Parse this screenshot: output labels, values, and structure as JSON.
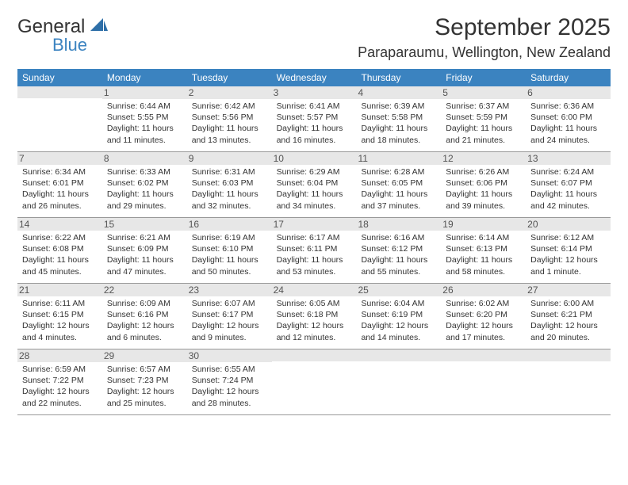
{
  "brand": {
    "word1": "General",
    "word2": "Blue",
    "text_color": "#333333",
    "accent_color": "#3b83c0"
  },
  "title": {
    "month": "September 2025",
    "location": "Paraparaumu, Wellington, New Zealand"
  },
  "calendar": {
    "header_bg": "#3b83c0",
    "header_fg": "#ffffff",
    "daynum_bg": "#e7e7e7",
    "border_color": "#999999",
    "weekdays": [
      "Sunday",
      "Monday",
      "Tuesday",
      "Wednesday",
      "Thursday",
      "Friday",
      "Saturday"
    ],
    "weeks": [
      [
        {
          "n": "",
          "sunrise": "",
          "sunset": "",
          "daylight": ""
        },
        {
          "n": "1",
          "sunrise": "Sunrise: 6:44 AM",
          "sunset": "Sunset: 5:55 PM",
          "daylight": "Daylight: 11 hours and 11 minutes."
        },
        {
          "n": "2",
          "sunrise": "Sunrise: 6:42 AM",
          "sunset": "Sunset: 5:56 PM",
          "daylight": "Daylight: 11 hours and 13 minutes."
        },
        {
          "n": "3",
          "sunrise": "Sunrise: 6:41 AM",
          "sunset": "Sunset: 5:57 PM",
          "daylight": "Daylight: 11 hours and 16 minutes."
        },
        {
          "n": "4",
          "sunrise": "Sunrise: 6:39 AM",
          "sunset": "Sunset: 5:58 PM",
          "daylight": "Daylight: 11 hours and 18 minutes."
        },
        {
          "n": "5",
          "sunrise": "Sunrise: 6:37 AM",
          "sunset": "Sunset: 5:59 PM",
          "daylight": "Daylight: 11 hours and 21 minutes."
        },
        {
          "n": "6",
          "sunrise": "Sunrise: 6:36 AM",
          "sunset": "Sunset: 6:00 PM",
          "daylight": "Daylight: 11 hours and 24 minutes."
        }
      ],
      [
        {
          "n": "7",
          "sunrise": "Sunrise: 6:34 AM",
          "sunset": "Sunset: 6:01 PM",
          "daylight": "Daylight: 11 hours and 26 minutes."
        },
        {
          "n": "8",
          "sunrise": "Sunrise: 6:33 AM",
          "sunset": "Sunset: 6:02 PM",
          "daylight": "Daylight: 11 hours and 29 minutes."
        },
        {
          "n": "9",
          "sunrise": "Sunrise: 6:31 AM",
          "sunset": "Sunset: 6:03 PM",
          "daylight": "Daylight: 11 hours and 32 minutes."
        },
        {
          "n": "10",
          "sunrise": "Sunrise: 6:29 AM",
          "sunset": "Sunset: 6:04 PM",
          "daylight": "Daylight: 11 hours and 34 minutes."
        },
        {
          "n": "11",
          "sunrise": "Sunrise: 6:28 AM",
          "sunset": "Sunset: 6:05 PM",
          "daylight": "Daylight: 11 hours and 37 minutes."
        },
        {
          "n": "12",
          "sunrise": "Sunrise: 6:26 AM",
          "sunset": "Sunset: 6:06 PM",
          "daylight": "Daylight: 11 hours and 39 minutes."
        },
        {
          "n": "13",
          "sunrise": "Sunrise: 6:24 AM",
          "sunset": "Sunset: 6:07 PM",
          "daylight": "Daylight: 11 hours and 42 minutes."
        }
      ],
      [
        {
          "n": "14",
          "sunrise": "Sunrise: 6:22 AM",
          "sunset": "Sunset: 6:08 PM",
          "daylight": "Daylight: 11 hours and 45 minutes."
        },
        {
          "n": "15",
          "sunrise": "Sunrise: 6:21 AM",
          "sunset": "Sunset: 6:09 PM",
          "daylight": "Daylight: 11 hours and 47 minutes."
        },
        {
          "n": "16",
          "sunrise": "Sunrise: 6:19 AM",
          "sunset": "Sunset: 6:10 PM",
          "daylight": "Daylight: 11 hours and 50 minutes."
        },
        {
          "n": "17",
          "sunrise": "Sunrise: 6:17 AM",
          "sunset": "Sunset: 6:11 PM",
          "daylight": "Daylight: 11 hours and 53 minutes."
        },
        {
          "n": "18",
          "sunrise": "Sunrise: 6:16 AM",
          "sunset": "Sunset: 6:12 PM",
          "daylight": "Daylight: 11 hours and 55 minutes."
        },
        {
          "n": "19",
          "sunrise": "Sunrise: 6:14 AM",
          "sunset": "Sunset: 6:13 PM",
          "daylight": "Daylight: 11 hours and 58 minutes."
        },
        {
          "n": "20",
          "sunrise": "Sunrise: 6:12 AM",
          "sunset": "Sunset: 6:14 PM",
          "daylight": "Daylight: 12 hours and 1 minute."
        }
      ],
      [
        {
          "n": "21",
          "sunrise": "Sunrise: 6:11 AM",
          "sunset": "Sunset: 6:15 PM",
          "daylight": "Daylight: 12 hours and 4 minutes."
        },
        {
          "n": "22",
          "sunrise": "Sunrise: 6:09 AM",
          "sunset": "Sunset: 6:16 PM",
          "daylight": "Daylight: 12 hours and 6 minutes."
        },
        {
          "n": "23",
          "sunrise": "Sunrise: 6:07 AM",
          "sunset": "Sunset: 6:17 PM",
          "daylight": "Daylight: 12 hours and 9 minutes."
        },
        {
          "n": "24",
          "sunrise": "Sunrise: 6:05 AM",
          "sunset": "Sunset: 6:18 PM",
          "daylight": "Daylight: 12 hours and 12 minutes."
        },
        {
          "n": "25",
          "sunrise": "Sunrise: 6:04 AM",
          "sunset": "Sunset: 6:19 PM",
          "daylight": "Daylight: 12 hours and 14 minutes."
        },
        {
          "n": "26",
          "sunrise": "Sunrise: 6:02 AM",
          "sunset": "Sunset: 6:20 PM",
          "daylight": "Daylight: 12 hours and 17 minutes."
        },
        {
          "n": "27",
          "sunrise": "Sunrise: 6:00 AM",
          "sunset": "Sunset: 6:21 PM",
          "daylight": "Daylight: 12 hours and 20 minutes."
        }
      ],
      [
        {
          "n": "28",
          "sunrise": "Sunrise: 6:59 AM",
          "sunset": "Sunset: 7:22 PM",
          "daylight": "Daylight: 12 hours and 22 minutes."
        },
        {
          "n": "29",
          "sunrise": "Sunrise: 6:57 AM",
          "sunset": "Sunset: 7:23 PM",
          "daylight": "Daylight: 12 hours and 25 minutes."
        },
        {
          "n": "30",
          "sunrise": "Sunrise: 6:55 AM",
          "sunset": "Sunset: 7:24 PM",
          "daylight": "Daylight: 12 hours and 28 minutes."
        },
        {
          "n": "",
          "sunrise": "",
          "sunset": "",
          "daylight": ""
        },
        {
          "n": "",
          "sunrise": "",
          "sunset": "",
          "daylight": ""
        },
        {
          "n": "",
          "sunrise": "",
          "sunset": "",
          "daylight": ""
        },
        {
          "n": "",
          "sunrise": "",
          "sunset": "",
          "daylight": ""
        }
      ]
    ]
  }
}
